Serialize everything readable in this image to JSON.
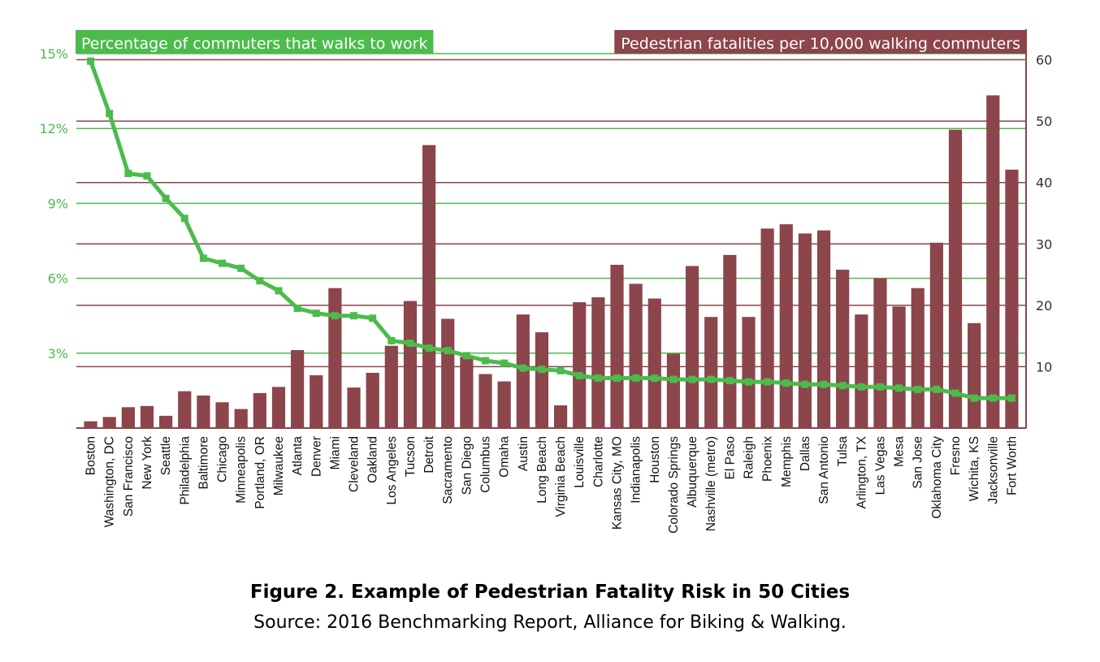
{
  "chart_data": {
    "type": "bar",
    "categories": [
      "Boston",
      "Washington, DC",
      "San Francisco",
      "New York",
      "Seattle",
      "Philadelphia",
      "Baltimore",
      "Chicago",
      "Minneapolis",
      "Portland, OR",
      "Milwaukee",
      "Atlanta",
      "Denver",
      "Miami",
      "Cleveland",
      "Oakland",
      "Los Angeles",
      "Tucson",
      "Detroit",
      "Sacramento",
      "San Diego",
      "Columbus",
      "Omaha",
      "Austin",
      "Long Beach",
      "Virginia Beach",
      "Louisville",
      "Charlotte",
      "Kansas City, MO",
      "Indianapolis",
      "Houston",
      "Colorado Springs",
      "Albuquerque",
      "Nashville (metro)",
      "El Paso",
      "Raleigh",
      "Phoenix",
      "Memphis",
      "Dallas",
      "San Antonio",
      "Tulsa",
      "Arlington, TX",
      "Las Vegas",
      "Mesa",
      "San Jose",
      "Oklahoma City",
      "Fresno",
      "Wichita, KS",
      "Jacksonville",
      "Fort Worth"
    ],
    "series": [
      {
        "name": "Pedestrian fatalities per 10,000 walking commuters",
        "type": "bar",
        "axis": "right",
        "color": "#8b454b",
        "values": [
          1.1,
          1.8,
          3.4,
          3.6,
          2.0,
          6.0,
          5.3,
          4.2,
          3.1,
          5.7,
          6.7,
          12.7,
          8.6,
          22.8,
          6.6,
          9.0,
          13.4,
          20.7,
          46.1,
          17.8,
          11.6,
          8.8,
          7.6,
          18.5,
          15.6,
          3.7,
          20.5,
          21.3,
          26.6,
          23.5,
          21.1,
          12.1,
          26.4,
          18.1,
          28.2,
          18.1,
          32.5,
          33.2,
          31.7,
          32.2,
          25.8,
          18.5,
          24.4,
          19.8,
          22.8,
          30.2,
          48.6,
          17.1,
          54.2,
          42.1
        ]
      },
      {
        "name": "Percentage of commuters that walks to work",
        "type": "line",
        "axis": "left",
        "color": "#4cbb4c",
        "values": [
          14.7,
          12.6,
          10.2,
          10.1,
          9.2,
          8.4,
          6.8,
          6.6,
          6.4,
          5.9,
          5.5,
          4.8,
          4.6,
          4.5,
          4.5,
          4.4,
          3.5,
          3.4,
          3.2,
          3.1,
          2.9,
          2.7,
          2.6,
          2.4,
          2.35,
          2.3,
          2.1,
          2.0,
          2.0,
          2.0,
          2.0,
          1.95,
          1.95,
          1.95,
          1.9,
          1.85,
          1.85,
          1.8,
          1.75,
          1.75,
          1.7,
          1.65,
          1.65,
          1.6,
          1.55,
          1.55,
          1.4,
          1.2,
          1.2,
          1.2
        ]
      }
    ],
    "y_left": {
      "min": 0,
      "max": 15,
      "ticks": [
        3,
        6,
        9,
        12,
        15
      ],
      "tick_labels": [
        "3%",
        "6%",
        "9%",
        "12%",
        "15%"
      ],
      "color": "#4cbb4c"
    },
    "y_right": {
      "min": 0,
      "max": 61,
      "ticks": [
        10,
        20,
        30,
        40,
        50,
        60
      ],
      "tick_labels": [
        "10",
        "20",
        "30",
        "40",
        "50",
        "60"
      ],
      "color": "#8b454b"
    },
    "grid": true,
    "legend": "top"
  },
  "caption": {
    "title": "Figure 2. Example of Pedestrian Fatality Risk in 50 Cities",
    "source": "Source: 2016 Benchmarking Report, Alliance for Biking & Walking."
  }
}
